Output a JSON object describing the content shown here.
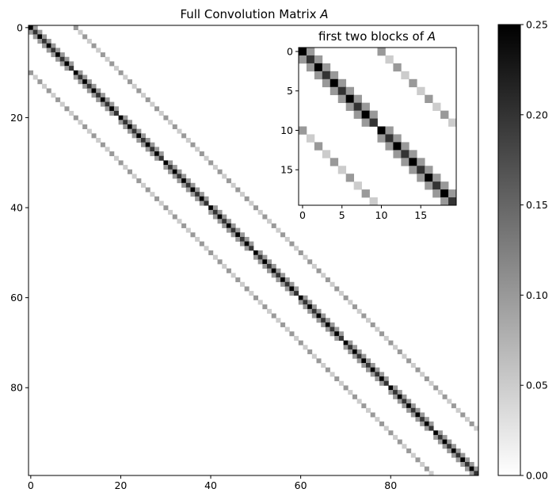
{
  "chart_data": [
    {
      "type": "heatmap",
      "title": "Full Convolution Matrix A",
      "title_parts": [
        "Full Convolution Matrix ",
        "A"
      ],
      "n": 100,
      "block_size": 10,
      "colormap": "gray_r",
      "clim": [
        0,
        0.25
      ],
      "cells": [
        {
          "offset": 0,
          "description": "main diagonal, values alternate 0.25 / 0.20 along diagonal",
          "values_cycle": [
            0.25,
            0.2
          ]
        },
        {
          "offset": 1,
          "description": "first super/sub diagonal within block",
          "value": 0.1
        },
        {
          "offset": -1,
          "description": "first sub diagonal within block",
          "value": 0.1
        },
        {
          "offset": 10,
          "description": "coupling band to next block",
          "values_cycle": [
            0.1,
            0.05
          ]
        },
        {
          "offset": -10,
          "description": "coupling band to previous block",
          "values_cycle": [
            0.1,
            0.05
          ]
        }
      ],
      "xticks": [
        "0",
        "20",
        "40",
        "60",
        "80"
      ],
      "xtick_values": [
        0,
        20,
        40,
        60,
        80
      ],
      "yticks": [
        "0",
        "20",
        "40",
        "60",
        "80"
      ],
      "ytick_values": [
        0,
        20,
        40,
        60,
        80
      ]
    },
    {
      "type": "heatmap",
      "title": "first two blocks of A",
      "title_parts": [
        "first two blocks of ",
        "A"
      ],
      "n": 20,
      "xticks": [
        "0",
        "5",
        "10",
        "15"
      ],
      "xtick_values": [
        0,
        5,
        10,
        15
      ],
      "yticks": [
        "0",
        "5",
        "10",
        "15"
      ],
      "ytick_values": [
        0,
        5,
        10,
        15
      ]
    },
    {
      "type": "colorbar",
      "ticks": [
        "0.00",
        "0.05",
        "0.10",
        "0.15",
        "0.20",
        "0.25"
      ],
      "tick_values": [
        0,
        0.05,
        0.1,
        0.15,
        0.2,
        0.25
      ],
      "range": [
        0,
        0.25
      ]
    }
  ]
}
